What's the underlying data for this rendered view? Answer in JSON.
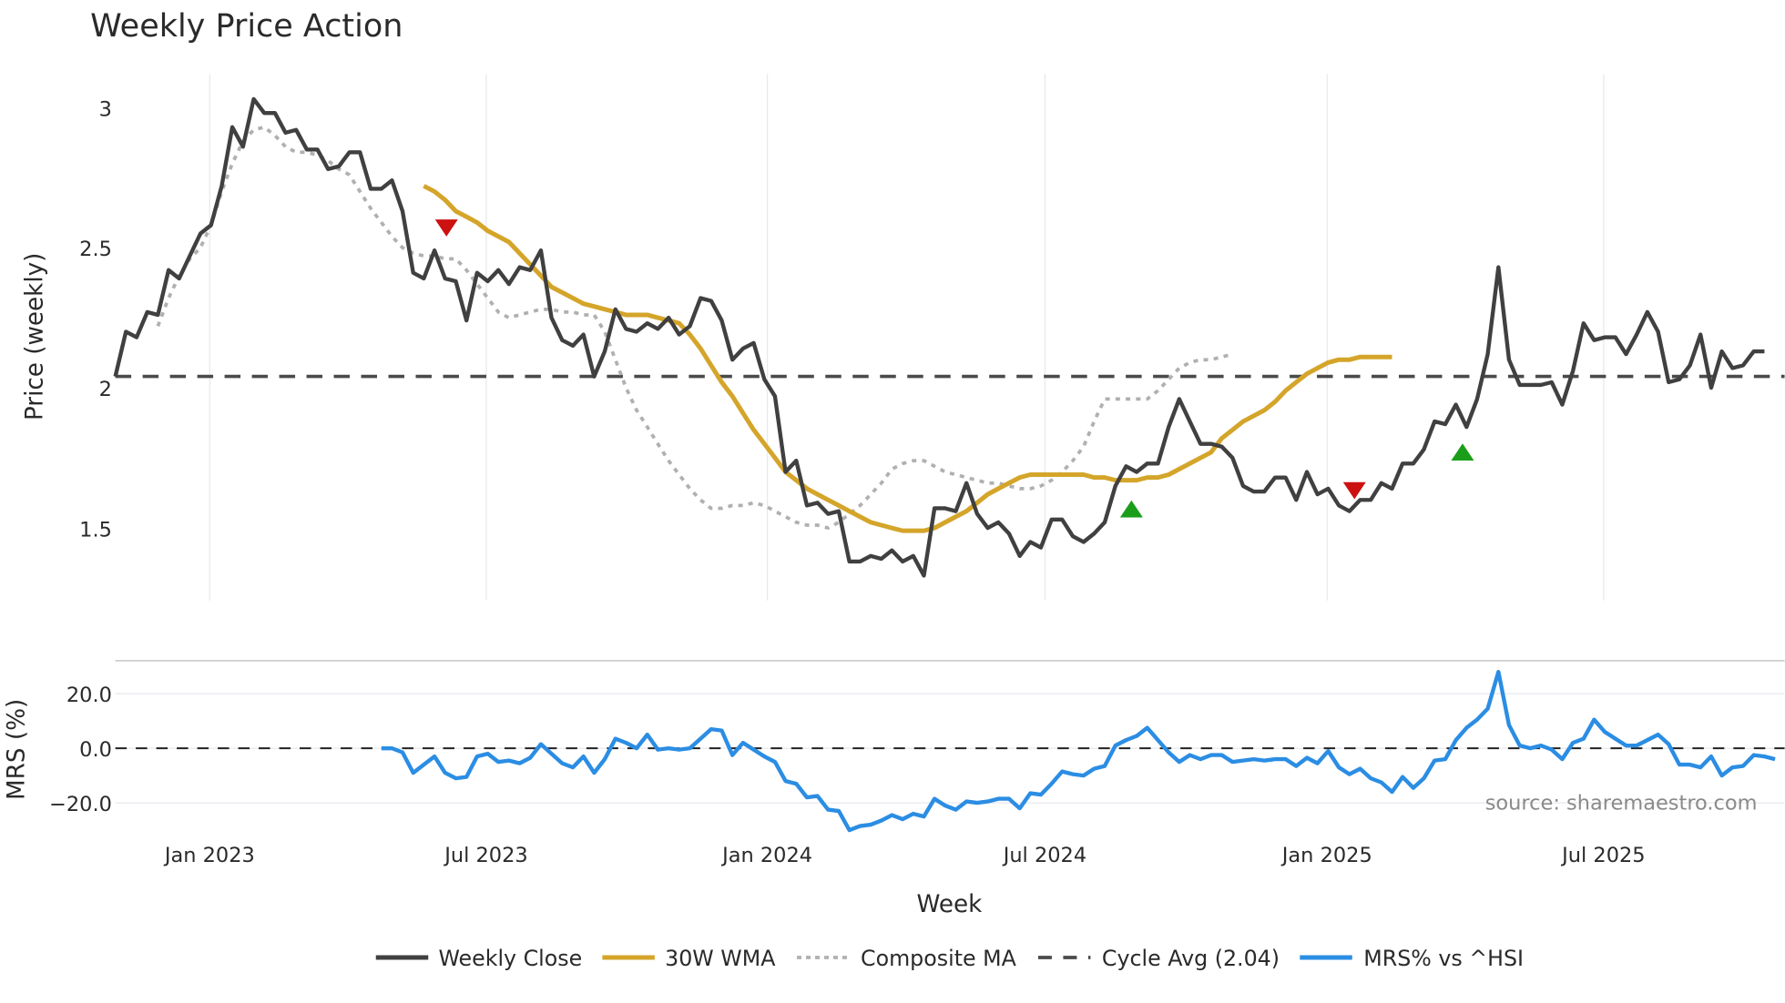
{
  "title": "Weekly Price Action",
  "source_note": "source: sharemaestro.com",
  "axes": {
    "price_ylabel": "Price (weekly)",
    "mrs_ylabel": "MRS (%)",
    "xlabel": "Week",
    "price_ticks": [
      "3",
      "2.5",
      "2",
      "1.5"
    ],
    "mrs_ticks": [
      "20.0",
      "0.0",
      "−20.0"
    ],
    "x_ticks": [
      "Jan 2023",
      "Jul 2023",
      "Jan 2024",
      "Jul 2024",
      "Jan 2025",
      "Jul 2025"
    ]
  },
  "legend": [
    {
      "label": "Weekly Close",
      "color": "#404040",
      "style": "solid"
    },
    {
      "label": "30W WMA",
      "color": "#d4a52a",
      "style": "solid"
    },
    {
      "label": "Composite MA",
      "color": "#b0b0b0",
      "style": "dotted"
    },
    {
      "label": "Cycle Avg (2.04)",
      "color": "#4a4a4a",
      "style": "dashed"
    },
    {
      "label": "MRS% vs ^HSI",
      "color": "#2b8de3",
      "style": "solid"
    }
  ],
  "chart_data": [
    {
      "type": "line",
      "title": "Weekly Price Action",
      "xlabel": "Week",
      "ylabel": "Price (weekly)",
      "ylim": [
        1.25,
        3.1
      ],
      "x_tick_labels": [
        "Jan 2023",
        "Jul 2023",
        "Jan 2024",
        "Jul 2024",
        "Jan 2025",
        "Jul 2025"
      ],
      "grid": true,
      "legend_position": "bottom",
      "x_start": "2022-11",
      "x_end": "2025-10",
      "series": [
        {
          "name": "Weekly Close",
          "color": "#404040",
          "values": [
            2.04,
            2.2,
            2.18,
            2.27,
            2.26,
            2.42,
            2.39,
            2.47,
            2.55,
            2.58,
            2.72,
            2.93,
            2.86,
            3.03,
            2.98,
            2.98,
            2.91,
            2.92,
            2.85,
            2.85,
            2.78,
            2.79,
            2.84,
            2.84,
            2.71,
            2.71,
            2.74,
            2.63,
            2.41,
            2.39,
            2.49,
            2.39,
            2.38,
            2.24,
            2.41,
            2.38,
            2.42,
            2.37,
            2.43,
            2.42,
            2.49,
            2.25,
            2.17,
            2.15,
            2.19,
            2.04,
            2.13,
            2.28,
            2.21,
            2.2,
            2.23,
            2.21,
            2.25,
            2.19,
            2.22,
            2.32,
            2.31,
            2.24,
            2.1,
            2.14,
            2.16,
            2.03,
            1.97,
            1.7,
            1.74,
            1.58,
            1.59,
            1.55,
            1.56,
            1.38,
            1.38,
            1.4,
            1.39,
            1.42,
            1.38,
            1.4,
            1.33,
            1.57,
            1.57,
            1.56,
            1.66,
            1.55,
            1.5,
            1.52,
            1.48,
            1.4,
            1.45,
            1.43,
            1.53,
            1.53,
            1.47,
            1.45,
            1.48,
            1.52,
            1.65,
            1.72,
            1.7,
            1.73,
            1.73,
            1.86,
            1.96,
            1.88,
            1.8,
            1.8,
            1.79,
            1.75,
            1.65,
            1.63,
            1.63,
            1.68,
            1.68,
            1.6,
            1.7,
            1.62,
            1.64,
            1.58,
            1.56,
            1.6,
            1.6,
            1.66,
            1.64,
            1.73,
            1.73,
            1.78,
            1.88,
            1.87,
            1.94,
            1.86,
            1.96,
            2.12,
            2.43,
            2.1,
            2.01,
            2.01,
            2.01,
            2.02,
            1.94,
            2.06,
            2.23,
            2.17,
            2.18,
            2.18,
            2.12,
            2.19,
            2.27,
            2.2,
            2.02,
            2.03,
            2.08,
            2.19,
            2.0,
            2.13,
            2.07,
            2.08,
            2.13,
            2.13
          ]
        },
        {
          "name": "30W WMA",
          "color": "#d4a52a",
          "start_index": 29,
          "values": [
            2.72,
            2.7,
            2.67,
            2.63,
            2.61,
            2.59,
            2.56,
            2.54,
            2.52,
            2.48,
            2.44,
            2.4,
            2.36,
            2.34,
            2.32,
            2.3,
            2.29,
            2.28,
            2.27,
            2.26,
            2.26,
            2.26,
            2.25,
            2.24,
            2.23,
            2.19,
            2.14,
            2.08,
            2.02,
            1.97,
            1.91,
            1.85,
            1.8,
            1.75,
            1.7,
            1.67,
            1.64,
            1.62,
            1.6,
            1.58,
            1.56,
            1.54,
            1.52,
            1.51,
            1.5,
            1.49,
            1.49,
            1.49,
            1.5,
            1.52,
            1.54,
            1.56,
            1.59,
            1.62,
            1.64,
            1.66,
            1.68,
            1.69,
            1.69,
            1.69,
            1.69,
            1.69,
            1.69,
            1.68,
            1.68,
            1.67,
            1.67,
            1.67,
            1.68,
            1.68,
            1.69,
            1.71,
            1.73,
            1.75,
            1.77,
            1.82,
            1.85,
            1.88,
            1.9,
            1.92,
            1.95,
            1.99,
            2.02,
            2.05,
            2.07,
            2.09,
            2.1,
            2.1,
            2.11,
            2.11,
            2.11,
            2.11
          ]
        },
        {
          "name": "Composite MA",
          "color": "#b0b0b0",
          "start_index": 4,
          "values": [
            2.22,
            2.32,
            2.4,
            2.46,
            2.5,
            2.58,
            2.7,
            2.8,
            2.88,
            2.92,
            2.93,
            2.9,
            2.86,
            2.84,
            2.84,
            2.83,
            2.81,
            2.78,
            2.76,
            2.7,
            2.64,
            2.59,
            2.54,
            2.5,
            2.48,
            2.47,
            2.47,
            2.46,
            2.46,
            2.42,
            2.37,
            2.32,
            2.27,
            2.25,
            2.26,
            2.27,
            2.28,
            2.28,
            2.27,
            2.27,
            2.26,
            2.26,
            2.2,
            2.1,
            2.0,
            1.92,
            1.86,
            1.8,
            1.74,
            1.69,
            1.64,
            1.6,
            1.57,
            1.57,
            1.58,
            1.58,
            1.59,
            1.58,
            1.56,
            1.54,
            1.52,
            1.51,
            1.51,
            1.5,
            1.52,
            1.55,
            1.58,
            1.62,
            1.66,
            1.71,
            1.73,
            1.74,
            1.74,
            1.72,
            1.7,
            1.69,
            1.68,
            1.67,
            1.66,
            1.66,
            1.65,
            1.64,
            1.64,
            1.65,
            1.67,
            1.7,
            1.74,
            1.79,
            1.88,
            1.96,
            1.96,
            1.96,
            1.96,
            1.96,
            1.99,
            2.03,
            2.07,
            2.09,
            2.1,
            2.1,
            2.11,
            2.12
          ]
        },
        {
          "name": "Cycle Avg (2.04)",
          "color": "#4a4a4a",
          "constant": 2.04
        }
      ],
      "annotations": [
        {
          "type": "sell",
          "marker": "down-triangle",
          "color": "#cc1111",
          "x_approx": "2023-06",
          "y": 2.57
        },
        {
          "type": "buy",
          "marker": "up-triangle",
          "color": "#1a9e1a",
          "x_approx": "2024-09",
          "y": 1.57
        },
        {
          "type": "sell",
          "marker": "down-triangle",
          "color": "#cc1111",
          "x_approx": "2025-02",
          "y": 1.64
        },
        {
          "type": "buy",
          "marker": "up-triangle",
          "color": "#1a9e1a",
          "x_approx": "2025-04",
          "y": 1.77
        }
      ]
    },
    {
      "type": "line",
      "title": "",
      "ylabel": "MRS (%)",
      "ylim": [
        -32,
        32
      ],
      "grid": true,
      "series": [
        {
          "name": "MRS% vs ^HSI",
          "color": "#2b8de3",
          "start_index": 25,
          "values": [
            0,
            0,
            -1.5,
            -9,
            -6,
            -3,
            -9,
            -11,
            -10.5,
            -3,
            -2,
            -5,
            -4.5,
            -5.5,
            -3.5,
            1.5,
            -2,
            -5.5,
            -7,
            -3,
            -9,
            -4,
            3.5,
            2,
            0,
            5,
            -0.5,
            0,
            -0.5,
            0,
            3.5,
            7,
            6.5,
            -2.5,
            2,
            -0.5,
            -3,
            -5,
            -12,
            -13,
            -18,
            -17.5,
            -22.5,
            -23,
            -30,
            -28.5,
            -28,
            -26.5,
            -24.5,
            -26,
            -24,
            -25,
            -18.5,
            -21,
            -22.5,
            -19.5,
            -20,
            -19.5,
            -18.5,
            -18.5,
            -22,
            -16.5,
            -17,
            -13,
            -8.5,
            -9.5,
            -10,
            -7.5,
            -6.5,
            1,
            3,
            4.5,
            7.5,
            3,
            -1.5,
            -5,
            -2.5,
            -4,
            -2.5,
            -2.5,
            -5,
            -4.5,
            -4,
            -4.5,
            -4,
            -4,
            -6.5,
            -3.5,
            -5.5,
            -1,
            -7,
            -9.5,
            -7.5,
            -11,
            -12.5,
            -16,
            -10.5,
            -14.5,
            -11,
            -4.5,
            -4,
            3,
            7.5,
            10.5,
            14.5,
            28,
            8.5,
            1,
            0,
            1,
            -0.5,
            -4,
            2,
            3.5,
            10.5,
            6,
            3.5,
            1,
            1,
            3,
            5,
            1.5,
            -6,
            -6,
            -7,
            -3,
            -10,
            -7,
            -6.5,
            -2.5,
            -3,
            -4
          ]
        },
        {
          "name": "Zero line",
          "constant": 0
        }
      ]
    }
  ]
}
